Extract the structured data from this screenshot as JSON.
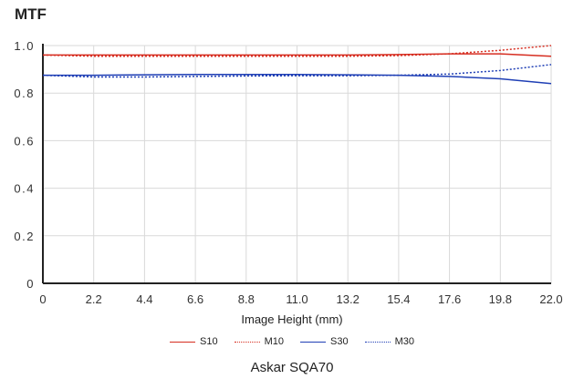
{
  "chart_data": {
    "type": "line",
    "title": "MTF",
    "subtitle": "Askar SQA70",
    "xlabel": "Image Height (mm)",
    "ylabel": "",
    "xlim": [
      0,
      22.0
    ],
    "ylim": [
      0,
      1.0
    ],
    "x_ticks": [
      "0",
      "2.2",
      "4.4",
      "6.6",
      "8.8",
      "11.0",
      "13.2",
      "15.4",
      "17.6",
      "19.8",
      "22.0"
    ],
    "y_ticks": [
      "0",
      "0.2",
      "0.4",
      "0.6",
      "0.8",
      "1.0"
    ],
    "grid": true,
    "legend_position": "bottom",
    "x": [
      0,
      2.2,
      4.4,
      6.6,
      8.8,
      11.0,
      13.2,
      15.4,
      17.6,
      19.8,
      22.0
    ],
    "series": [
      {
        "name": "S10",
        "color": "#d62d20",
        "style": "solid",
        "values": [
          0.96,
          0.96,
          0.96,
          0.96,
          0.96,
          0.96,
          0.96,
          0.962,
          0.965,
          0.965,
          0.955
        ]
      },
      {
        "name": "M10",
        "color": "#d62d20",
        "style": "dotted",
        "values": [
          0.96,
          0.955,
          0.955,
          0.955,
          0.955,
          0.955,
          0.955,
          0.958,
          0.965,
          0.98,
          1.0
        ]
      },
      {
        "name": "S30",
        "color": "#1f3fb5",
        "style": "solid",
        "values": [
          0.875,
          0.875,
          0.877,
          0.878,
          0.878,
          0.878,
          0.877,
          0.875,
          0.87,
          0.86,
          0.84
        ]
      },
      {
        "name": "M30",
        "color": "#1f3fb5",
        "style": "dotted",
        "values": [
          0.875,
          0.868,
          0.868,
          0.87,
          0.872,
          0.873,
          0.873,
          0.875,
          0.88,
          0.895,
          0.92
        ]
      }
    ]
  }
}
